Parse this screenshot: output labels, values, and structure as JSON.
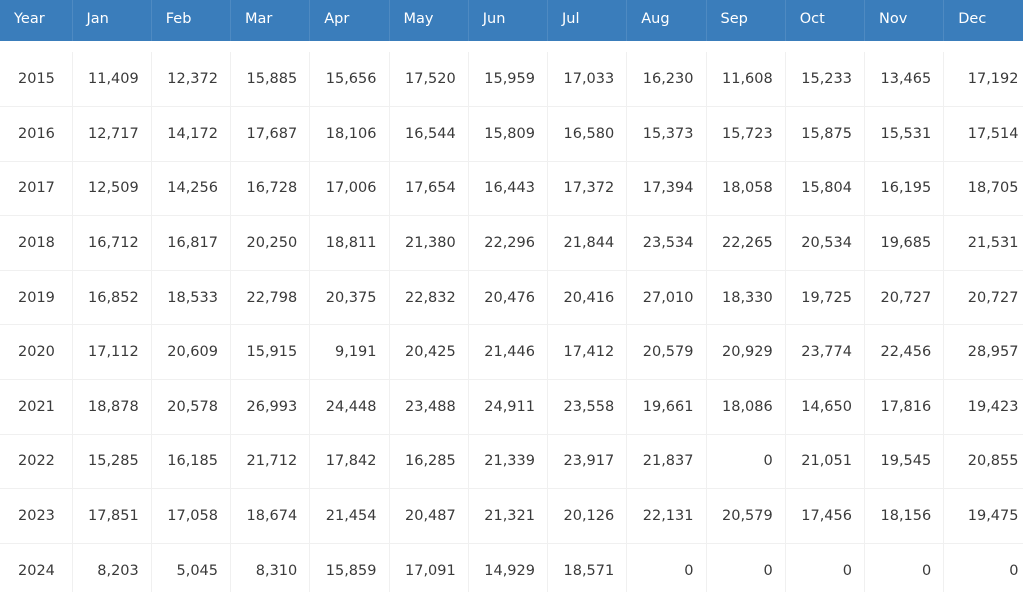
{
  "table": {
    "headers": [
      "Year",
      "Jan",
      "Feb",
      "Mar",
      "Apr",
      "May",
      "Jun",
      "Jul",
      "Aug",
      "Sep",
      "Oct",
      "Nov",
      "Dec"
    ],
    "rows": [
      [
        "2015",
        "11,409",
        "12,372",
        "15,885",
        "15,656",
        "17,520",
        "15,959",
        "17,033",
        "16,230",
        "11,608",
        "15,233",
        "13,465",
        "17,192"
      ],
      [
        "2016",
        "12,717",
        "14,172",
        "17,687",
        "18,106",
        "16,544",
        "15,809",
        "16,580",
        "15,373",
        "15,723",
        "15,875",
        "15,531",
        "17,514"
      ],
      [
        "2017",
        "12,509",
        "14,256",
        "16,728",
        "17,006",
        "17,654",
        "16,443",
        "17,372",
        "17,394",
        "18,058",
        "15,804",
        "16,195",
        "18,705"
      ],
      [
        "2018",
        "16,712",
        "16,817",
        "20,250",
        "18,811",
        "21,380",
        "22,296",
        "21,844",
        "23,534",
        "22,265",
        "20,534",
        "19,685",
        "21,531"
      ],
      [
        "2019",
        "16,852",
        "18,533",
        "22,798",
        "20,375",
        "22,832",
        "20,476",
        "20,416",
        "27,010",
        "18,330",
        "19,725",
        "20,727",
        "20,727"
      ],
      [
        "2020",
        "17,112",
        "20,609",
        "15,915",
        "9,191",
        "20,425",
        "21,446",
        "17,412",
        "20,579",
        "20,929",
        "23,774",
        "22,456",
        "28,957"
      ],
      [
        "2021",
        "18,878",
        "20,578",
        "26,993",
        "24,448",
        "23,488",
        "24,911",
        "23,558",
        "19,661",
        "18,086",
        "14,650",
        "17,816",
        "19,423"
      ],
      [
        "2022",
        "15,285",
        "16,185",
        "21,712",
        "17,842",
        "16,285",
        "21,339",
        "23,917",
        "21,837",
        "0",
        "21,051",
        "19,545",
        "20,855"
      ],
      [
        "2023",
        "17,851",
        "17,058",
        "18,674",
        "21,454",
        "20,487",
        "21,321",
        "20,126",
        "22,131",
        "20,579",
        "17,456",
        "18,156",
        "19,475"
      ],
      [
        "2024",
        "8,203",
        "5,045",
        "8,310",
        "15,859",
        "17,091",
        "14,929",
        "18,571",
        "0",
        "0",
        "0",
        "0",
        "0"
      ]
    ]
  },
  "colors": {
    "header_bg": "#3a7dbb",
    "header_text": "#ffffff",
    "cell_text": "#3a3a3a",
    "grid_line": "#f0f0f0"
  }
}
